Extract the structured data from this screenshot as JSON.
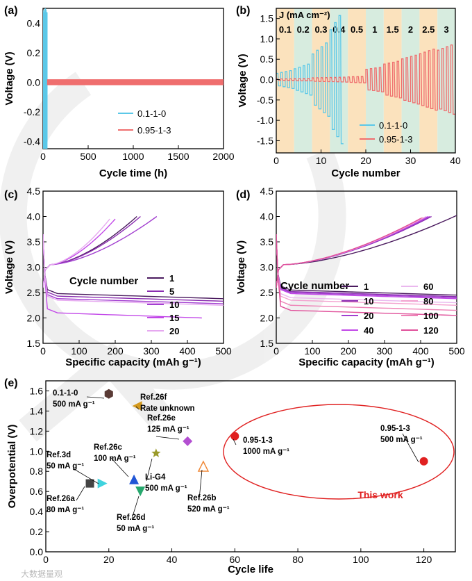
{
  "colors": {
    "blue": "#5bc8e8",
    "red": "#ef6e6e",
    "highlight": "#e02020",
    "band_orange": "#fbe2bd",
    "band_green": "#d7ecdf"
  },
  "chart_data": [
    {
      "panel_label": "(a)",
      "type": "line",
      "xlabel": "Cycle time (h)",
      "ylabel": "Voltage (V)",
      "xlim": [
        0,
        2000
      ],
      "ylim": [
        -0.45,
        0.5
      ],
      "xticks": [
        "0",
        "500",
        "1000",
        "1500",
        "2000"
      ],
      "yticks": [
        "-0.4",
        "-0.2",
        "0.0",
        "0.2",
        "0.4"
      ],
      "series": [
        {
          "name": "0.1-1-0",
          "color": "#5bc8e8",
          "x_range": [
            0,
            45
          ],
          "amplitude": 0.5
        },
        {
          "name": "0.95-1-3",
          "color": "#ef6e6e",
          "x_range": [
            45,
            2000
          ],
          "amplitude": 0.02
        }
      ]
    },
    {
      "panel_label": "(b)",
      "type": "line",
      "xlabel": "Cycle number",
      "ylabel": "Voltage (V)",
      "xlim": [
        0,
        40
      ],
      "ylim": [
        -1.8,
        1.75
      ],
      "xticks": [
        "0",
        "10",
        "20",
        "30",
        "40"
      ],
      "yticks": [
        "-1.5",
        "-1.0",
        "-0.5",
        "0.0",
        "0.5",
        "1.0",
        "1.5"
      ],
      "band_title": "J (mA cm⁻²)",
      "current_densities": [
        "0.1",
        "0.2",
        "0.3",
        "0.4",
        "0.5",
        "1",
        "1.5",
        "2",
        "2.5",
        "3"
      ],
      "band_edges": [
        0,
        4,
        8,
        12,
        16,
        20,
        24,
        28,
        32,
        36,
        40
      ],
      "series": [
        {
          "name": "0.1-1-0",
          "color": "#5bc8e8",
          "amplitudes": [
            0.22,
            0.38,
            0.9,
            1.75
          ],
          "cycles": [
            0,
            15
          ]
        },
        {
          "name": "0.95-1-3",
          "color": "#ef6e6e",
          "amplitudes": [
            0.02,
            0.03,
            0.05,
            0.06,
            0.08,
            0.3,
            0.45,
            0.6,
            0.75,
            0.85
          ],
          "cycles": [
            0,
            40
          ]
        }
      ]
    },
    {
      "panel_label": "(c)",
      "type": "line",
      "xlabel": "Specific capacity (mAh g⁻¹)",
      "ylabel": "Voltage (V)",
      "xlim": [
        0,
        500
      ],
      "ylim": [
        1.5,
        4.5
      ],
      "xticks": [
        "0",
        "100",
        "200",
        "300",
        "400",
        "500"
      ],
      "yticks": [
        "1.5",
        "2.0",
        "2.5",
        "3.0",
        "3.5",
        "4.0",
        "4.5"
      ],
      "legend_title": "Cycle number",
      "series": [
        {
          "name": "1",
          "color": "#4a1a5e",
          "discharge_end": [
            500,
            2.38
          ],
          "charge_end": [
            260,
            4.0
          ]
        },
        {
          "name": "5",
          "color": "#8a2bb0",
          "discharge_end": [
            500,
            2.33
          ],
          "charge_end": [
            270,
            4.0
          ]
        },
        {
          "name": "10",
          "color": "#a23fd0",
          "discharge_end": [
            500,
            2.28
          ],
          "charge_end": [
            315,
            4.0
          ]
        },
        {
          "name": "15",
          "color": "#c248e8",
          "discharge_end": [
            440,
            2.0
          ],
          "charge_end": [
            200,
            3.95
          ]
        },
        {
          "name": "20",
          "color": "#e6a8f0",
          "discharge_end": [
            500,
            2.25
          ],
          "charge_end": [
            185,
            3.95
          ]
        }
      ]
    },
    {
      "panel_label": "(d)",
      "type": "line",
      "xlabel": "Specific capacity (mAh g⁻¹)",
      "ylabel": "Voltage (V)",
      "xlim": [
        0,
        500
      ],
      "ylim": [
        1.5,
        4.5
      ],
      "xticks": [
        "0",
        "100",
        "200",
        "300",
        "400",
        "500"
      ],
      "yticks": [
        "1.5",
        "2.0",
        "2.5",
        "3.0",
        "3.5",
        "4.0",
        "4.5"
      ],
      "legend_title": "Cycle number",
      "series": [
        {
          "name": "1",
          "color": "#4a1a5e",
          "discharge_end": [
            500,
            2.45
          ],
          "charge_end": [
            500,
            4.02
          ]
        },
        {
          "name": "10",
          "color": "#8a2bb0",
          "discharge_end": [
            500,
            2.42
          ],
          "charge_end": [
            430,
            4.0
          ]
        },
        {
          "name": "20",
          "color": "#a23fd0",
          "discharge_end": [
            500,
            2.4
          ],
          "charge_end": [
            425,
            4.0
          ]
        },
        {
          "name": "40",
          "color": "#c248e8",
          "discharge_end": [
            500,
            2.38
          ],
          "charge_end": [
            420,
            4.0
          ]
        },
        {
          "name": "60",
          "color": "#eab8ee",
          "discharge_end": [
            500,
            2.3
          ],
          "charge_end": [
            415,
            4.0
          ]
        },
        {
          "name": "80",
          "color": "#f3a2cf",
          "discharge_end": [
            500,
            2.25
          ],
          "charge_end": [
            410,
            3.98
          ]
        },
        {
          "name": "100",
          "color": "#ee82b6",
          "discharge_end": [
            500,
            2.15
          ],
          "charge_end": [
            405,
            3.98
          ]
        },
        {
          "name": "120",
          "color": "#e0509a",
          "discharge_end": [
            500,
            2.05
          ],
          "charge_end": [
            400,
            3.96
          ]
        }
      ]
    },
    {
      "panel_label": "(e)",
      "type": "scatter",
      "xlabel": "Cycle life",
      "ylabel": "Overpotential (V)",
      "xlim": [
        0,
        130
      ],
      "ylim": [
        0,
        1.7
      ],
      "xticks": [
        "0",
        "20",
        "40",
        "60",
        "80",
        "100",
        "120"
      ],
      "yticks": [
        "0.0",
        "0.2",
        "0.4",
        "0.6",
        "0.8",
        "1.0",
        "1.2",
        "1.4",
        "1.6"
      ],
      "highlight_label": "This work",
      "points": [
        {
          "label": [
            "0.1-1-0",
            "500 mA g⁻¹"
          ],
          "x": 20,
          "y": 1.57,
          "marker": "hexagon",
          "color": "#5a3b36"
        },
        {
          "label": [
            "Ref.26f",
            "Rate unknown"
          ],
          "x": 29,
          "y": 1.45,
          "marker": "tri-left",
          "color": "#d49a1e"
        },
        {
          "label": [
            "Ref.26e",
            "125 mA g⁻¹"
          ],
          "x": 45,
          "y": 1.1,
          "marker": "diamond",
          "color": "#b34fd1"
        },
        {
          "label": [
            "Ref.26c",
            "100 mA g⁻¹"
          ],
          "x": 28,
          "y": 0.72,
          "marker": "tri-up",
          "color": "#2156d6"
        },
        {
          "label": [
            "Ref.3d",
            "50 mA g⁻¹"
          ],
          "x": 18,
          "y": 0.68,
          "marker": "tri-right",
          "color": "#3fd3de"
        },
        {
          "label": [
            "Ref.26a",
            "80 mA g⁻¹"
          ],
          "x": 14,
          "y": 0.68,
          "marker": "square",
          "color": "#444444"
        },
        {
          "label": [
            "Li-G4",
            "500 mA g⁻¹"
          ],
          "x": 35,
          "y": 0.98,
          "marker": "star",
          "color": "#9a9a2a"
        },
        {
          "label": [
            "Ref.26d",
            "50 mA g⁻¹"
          ],
          "x": 30,
          "y": 0.6,
          "marker": "tri-down",
          "color": "#27a86e"
        },
        {
          "label": [
            "Ref.26b",
            "520 mA g⁻¹"
          ],
          "x": 50,
          "y": 0.85,
          "marker": "tri-up-open",
          "color": "#f08a3a"
        },
        {
          "label": [
            "0.95-1-3",
            "1000 mA g⁻¹"
          ],
          "x": 60,
          "y": 1.15,
          "marker": "circle",
          "color": "#e02020"
        },
        {
          "label": [
            "0.95-1-3",
            "500 mA g⁻¹"
          ],
          "x": 120,
          "y": 0.9,
          "marker": "circle",
          "color": "#e02020"
        }
      ]
    }
  ],
  "watermark": "大数据量观"
}
